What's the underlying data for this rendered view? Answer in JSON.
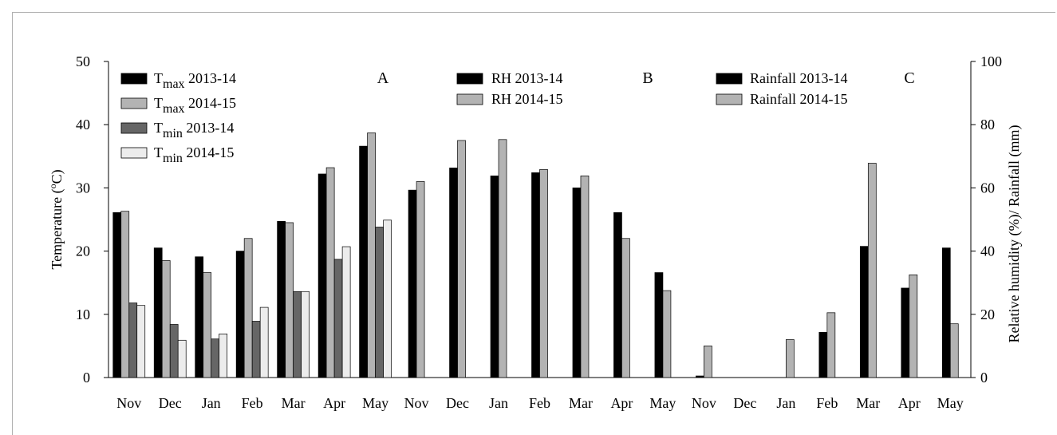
{
  "chart_data": {
    "type": "bar",
    "left_axis": {
      "label_prefix": "Temperature (",
      "label_unit_sup": "o",
      "label_suffix": "C)",
      "ylim": [
        0,
        50
      ],
      "ticks": [
        0,
        10,
        20,
        30,
        40,
        50
      ]
    },
    "right_axis": {
      "label": "Relative humidity (%)/ Rainfall (mm)",
      "ylim": [
        0,
        100
      ],
      "ticks": [
        0,
        20,
        40,
        60,
        80,
        100
      ]
    },
    "panels": [
      {
        "id": "A",
        "categories": [
          "Nov",
          "Dec",
          "Jan",
          "Feb",
          "Mar",
          "Apr",
          "May"
        ],
        "axis": "left",
        "series": [
          {
            "name": "T",
            "sub": "max",
            "tail": " 2013-14",
            "color": "#000000",
            "values": [
              26.1,
              20.5,
              19.1,
              20.0,
              24.7,
              32.2,
              36.6
            ]
          },
          {
            "name": "T",
            "sub": "max",
            "tail": " 2014-15",
            "color": "#b3b3b3",
            "values": [
              26.3,
              18.5,
              16.6,
              22.0,
              24.5,
              33.2,
              38.7
            ]
          },
          {
            "name": "T",
            "sub": "min",
            "tail": " 2013-14",
            "color": "#666666",
            "values": [
              11.8,
              8.4,
              6.1,
              8.9,
              13.6,
              18.7,
              23.8
            ]
          },
          {
            "name": "T",
            "sub": "min",
            "tail": " 2014-15",
            "color": "#ececec",
            "values": [
              11.4,
              5.9,
              6.9,
              11.1,
              13.6,
              20.7,
              24.9
            ]
          }
        ]
      },
      {
        "id": "B",
        "categories": [
          "Nov",
          "Dec",
          "Jan",
          "Feb",
          "Mar",
          "Apr",
          "May"
        ],
        "axis": "right",
        "series": [
          {
            "name": "RH 2013-14",
            "color": "#000000",
            "values": [
              59.3,
              66.3,
              63.8,
              64.8,
              60.0,
              52.2,
              33.2
            ]
          },
          {
            "name": "RH 2014-15",
            "color": "#b3b3b3",
            "values": [
              62.0,
              75.0,
              75.3,
              65.8,
              63.8,
              44.0,
              27.5
            ]
          }
        ]
      },
      {
        "id": "C",
        "categories": [
          "Nov",
          "Dec",
          "Jan",
          "Feb",
          "Mar",
          "Apr",
          "May"
        ],
        "axis": "right",
        "series": [
          {
            "name": "Rainfall 2013-14",
            "color": "#000000",
            "values": [
              0.5,
              0,
              0,
              14.3,
              41.5,
              28.3,
              41.0
            ]
          },
          {
            "name": "Rainfall 2014-15",
            "color": "#b3b3b3",
            "values": [
              10.0,
              0,
              12.0,
              20.5,
              67.8,
              32.5,
              17.0
            ]
          }
        ]
      }
    ]
  }
}
